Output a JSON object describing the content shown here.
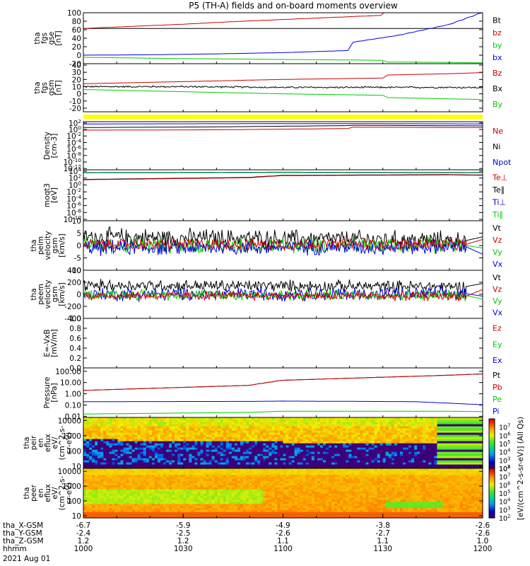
{
  "title": "P5 (TH-A) fields and on-board moments overview",
  "colors": {
    "black": "#000000",
    "red": "#cc0000",
    "green": "#00cc00",
    "blue": "#0000dd",
    "yellow": "#ffff00"
  },
  "chart_data": [
    {
      "type": "line",
      "id": "p1",
      "ylabel": [
        "tha",
        "fgs",
        "gse",
        "[nT]"
      ],
      "yticks": [
        "100",
        "80",
        "60",
        "40",
        "20",
        "0",
        "-20"
      ],
      "ylim": [
        -20,
        100
      ],
      "log": false,
      "legend": [
        {
          "name": "Bt",
          "color": "black"
        },
        {
          "name": "bz",
          "color": "red"
        },
        {
          "name": "by",
          "color": "green"
        },
        {
          "name": "bx",
          "color": "blue"
        }
      ],
      "series": [
        {
          "name": "Bt",
          "color": "black",
          "x": [
            1000,
            1200
          ],
          "y": [
            63,
            63
          ]
        },
        {
          "name": "bz",
          "color": "red",
          "x": [
            1000,
            1015,
            1030,
            1045,
            1060,
            1075,
            1090,
            1105,
            1120,
            1135,
            1150
          ],
          "y": [
            63,
            68,
            73,
            79,
            84,
            89,
            94,
            98,
            101,
            103,
            104
          ]
        },
        {
          "name": "bx",
          "color": "blue",
          "x": [
            1000,
            1020,
            1040,
            1060,
            1080,
            1100,
            1120,
            1135,
            1150,
            1160
          ],
          "y": [
            0,
            1,
            3,
            6,
            11,
            18,
            29,
            47,
            72,
            100
          ]
        },
        {
          "name": "by",
          "color": "green",
          "x": [
            1000,
            1030,
            1060,
            1090,
            1110,
            1130,
            1150,
            1170,
            1185,
            1200
          ],
          "y": [
            -5,
            -8,
            -10,
            -12,
            -14,
            -16,
            -17,
            -19,
            -17,
            -11
          ]
        }
      ]
    },
    {
      "type": "line",
      "id": "p2",
      "ylabel": [
        "tha",
        "fgs",
        "gsm",
        "[nT]"
      ],
      "yticks": [
        "40",
        "30",
        "20",
        "10",
        "0",
        "-10",
        "-20"
      ],
      "ylim": [
        -25,
        42
      ],
      "log": false,
      "legend": [
        {
          "name": "Bz",
          "color": "red"
        },
        {
          "name": "Bx",
          "color": "black"
        },
        {
          "name": "By",
          "color": "green"
        }
      ],
      "series": [
        {
          "name": "Bz",
          "color": "red",
          "x": [
            1000,
            1030,
            1060,
            1090,
            1120,
            1150,
            1170,
            1185,
            1200
          ],
          "y": [
            14,
            17,
            20,
            22,
            25,
            28,
            31,
            33,
            30
          ]
        },
        {
          "name": "Bx",
          "color": "black",
          "x": [
            1000,
            1030,
            1060,
            1090,
            1120,
            1150,
            1180,
            1200
          ],
          "y": [
            10,
            10,
            9,
            9,
            9,
            9,
            8,
            8
          ],
          "noise": 1
        },
        {
          "name": "By",
          "color": "green",
          "x": [
            1000,
            1030,
            1060,
            1090,
            1120,
            1150,
            1180,
            1200
          ],
          "y": [
            6,
            3,
            0,
            -2,
            -4,
            -7,
            -10,
            -12
          ]
        }
      ]
    },
    {
      "type": "line",
      "id": "p3",
      "ylabel": [
        "Density",
        "[cm-3]"
      ],
      "yticks": [
        "10^2",
        "10^0",
        "10^-2",
        "10^-4",
        "10^-6",
        "10^-8",
        "10^-10",
        "10^-12"
      ],
      "ylim": [
        -12.4,
        2.4
      ],
      "log": true,
      "legend": [
        {
          "name": "Ne",
          "color": "red"
        },
        {
          "name": "Ni",
          "color": "black"
        },
        {
          "name": "Npot",
          "color": "blue"
        }
      ],
      "series": [
        {
          "name": "Npot",
          "color": "blue",
          "x": [
            1000,
            1060,
            1120,
            1170,
            1200
          ],
          "y": [
            1.7,
            1.8,
            1.8,
            1.7,
            1.5
          ]
        },
        {
          "name": "Ni",
          "color": "black",
          "x": [
            1000,
            1040,
            1080,
            1120,
            1160,
            1200
          ],
          "y": [
            0.6,
            0.8,
            1.2,
            1.3,
            1.1,
            0.9
          ]
        },
        {
          "name": "Ne",
          "color": "red",
          "x": [
            1000,
            1040,
            1080,
            1120,
            1160,
            1200
          ],
          "y": [
            -0.2,
            -0.1,
            0.3,
            0.7,
            0.6,
            0.3
          ]
        }
      ]
    },
    {
      "type": "line",
      "id": "p4",
      "ylabel": [
        "moqt3",
        "[eV]"
      ],
      "yticks": [
        "10^4",
        "10^2",
        "10^0",
        "10^-2",
        "10^-4",
        "10^-6",
        "10^-8",
        "10^-10"
      ],
      "ylim": [
        -10.4,
        4.4
      ],
      "log": true,
      "legend": [
        {
          "name": "Te⊥",
          "color": "red"
        },
        {
          "name": "Te∥",
          "color": "black"
        },
        {
          "name": "Ti⊥",
          "color": "blue"
        },
        {
          "name": "Ti∥",
          "color": "green"
        }
      ],
      "series": [
        {
          "name": "Ti⊥",
          "color": "blue",
          "x": [
            1000,
            1100,
            1200
          ],
          "y": [
            3.6,
            3.7,
            3.6
          ]
        },
        {
          "name": "Ti∥",
          "color": "green",
          "x": [
            1000,
            1100,
            1200
          ],
          "y": [
            3.5,
            3.6,
            3.5
          ]
        },
        {
          "name": "Te∥",
          "color": "black",
          "x": [
            1000,
            1050,
            1100,
            1150,
            1200
          ],
          "y": [
            1.6,
            2.2,
            2.8,
            3.0,
            2.9
          ]
        },
        {
          "name": "Te⊥",
          "color": "red",
          "x": [
            1000,
            1050,
            1100,
            1150,
            1200
          ],
          "y": [
            1.5,
            2.1,
            2.7,
            2.9,
            2.8
          ]
        }
      ]
    },
    {
      "type": "line",
      "id": "p5",
      "ylabel": [
        "tha",
        "peim",
        "velocity",
        "gsm",
        "[km/s]"
      ],
      "yticks": [
        "10",
        "5",
        "0",
        "-5",
        "-10"
      ],
      "ylim": [
        -10,
        10
      ],
      "log": false,
      "legend": [
        {
          "name": "Vt",
          "color": "black"
        },
        {
          "name": "Vz",
          "color": "red"
        },
        {
          "name": "Vy",
          "color": "green"
        },
        {
          "name": "Vx",
          "color": "blue"
        }
      ],
      "noisy_until": 1155,
      "series": [
        {
          "name": "Vt",
          "color": "black",
          "x": [
            1000,
            1155,
            1200
          ],
          "y": [
            3.5,
            2.0,
            3.5
          ],
          "noise": 3
        },
        {
          "name": "Vy",
          "color": "green",
          "x": [
            1000,
            1155,
            1200
          ],
          "y": [
            0,
            0,
            -1
          ],
          "noise": 2.5
        },
        {
          "name": "Vx",
          "color": "blue",
          "x": [
            1000,
            1155,
            1200
          ],
          "y": [
            -1,
            -0.5,
            -3.5
          ],
          "noise": 2.5
        },
        {
          "name": "Vz",
          "color": "red",
          "x": [
            1000,
            1155,
            1200
          ],
          "y": [
            0.5,
            0.5,
            2.5
          ],
          "noise": 2
        }
      ]
    },
    {
      "type": "line",
      "id": "p6",
      "ylabel": [
        "tha",
        "peem",
        "velocity",
        "gsm",
        "[km/s]"
      ],
      "yticks": [
        "400",
        "200",
        "0",
        "-200",
        "-400"
      ],
      "ylim": [
        -400,
        400
      ],
      "log": false,
      "legend": [
        {
          "name": "Vt",
          "color": "black"
        },
        {
          "name": "Vz",
          "color": "red"
        },
        {
          "name": "Vy",
          "color": "green"
        },
        {
          "name": "Vx",
          "color": "blue"
        }
      ],
      "noisy_until": 1155,
      "series": [
        {
          "name": "Vt",
          "color": "black",
          "x": [
            1000,
            1155,
            1200
          ],
          "y": [
            150,
            130,
            180
          ],
          "noise": 80
        },
        {
          "name": "Vx",
          "color": "blue",
          "x": [
            1000,
            1155,
            1200
          ],
          "y": [
            0,
            10,
            -30
          ],
          "noise": 90
        },
        {
          "name": "Vy",
          "color": "green",
          "x": [
            1000,
            1155,
            1200
          ],
          "y": [
            0,
            -20,
            -80
          ],
          "noise": 70
        },
        {
          "name": "Vz",
          "color": "red",
          "x": [
            1000,
            1155,
            1200
          ],
          "y": [
            -20,
            -30,
            80
          ],
          "noise": 60
        }
      ]
    },
    {
      "type": "line",
      "id": "p7",
      "ylabel": [
        "E=-VxB",
        "[mV/m]"
      ],
      "yticks": [
        "1.0",
        "0.8",
        "0.6",
        "0.4",
        "0.2",
        "0.0"
      ],
      "ylim": [
        0,
        1
      ],
      "log": false,
      "legend": [
        {
          "name": "Ez",
          "color": "red"
        },
        {
          "name": "Ey",
          "color": "green"
        },
        {
          "name": "Ex",
          "color": "blue"
        }
      ],
      "series": []
    },
    {
      "type": "line",
      "id": "p8",
      "ylabel": [
        "Pressure",
        "[nPa]"
      ],
      "yticks": [
        "100.00",
        "10.00",
        "1.00",
        "0.10",
        "0.01"
      ],
      "ylim": [
        -2.1,
        2.3
      ],
      "log": true,
      "legend": [
        {
          "name": "Pt",
          "color": "black"
        },
        {
          "name": "Pb",
          "color": "red"
        },
        {
          "name": "Pe",
          "color": "green"
        },
        {
          "name": "Pi",
          "color": "blue"
        }
      ],
      "series": [
        {
          "name": "Pt",
          "color": "black",
          "x": [
            1000,
            1050,
            1100,
            1150,
            1180,
            1200
          ],
          "y": [
            0.3,
            0.75,
            1.2,
            1.65,
            2.0,
            2.2
          ]
        },
        {
          "name": "Pb",
          "color": "red",
          "x": [
            1000,
            1050,
            1100,
            1150,
            1180,
            1200
          ],
          "y": [
            0.3,
            0.75,
            1.2,
            1.65,
            2.0,
            2.2
          ]
        },
        {
          "name": "Pi",
          "color": "blue",
          "x": [
            1000,
            1050,
            1100,
            1140,
            1170,
            1200
          ],
          "y": [
            -0.7,
            -0.68,
            -0.65,
            -0.7,
            -1.1,
            -1.6
          ]
        },
        {
          "name": "Pe",
          "color": "green",
          "x": [
            1000,
            1050,
            1100,
            1150,
            1180,
            1200
          ],
          "y": [
            -1.8,
            -1.65,
            -1.55,
            -1.55,
            -1.65,
            -1.8
          ]
        }
      ]
    },
    {
      "type": "heatmap",
      "id": "s1",
      "ylabel": [
        "tha",
        "peir",
        "en",
        "eflux",
        "eV/",
        "(cm^2-s-",
        "sr-eV)"
      ],
      "yticks": [
        "10000",
        "1000",
        "100",
        "10"
      ],
      "ylim": [
        0.85,
        4.2
      ],
      "log": true,
      "variant": "peir"
    },
    {
      "type": "heatmap",
      "id": "s2",
      "ylabel": [
        "tha",
        "peer",
        "en",
        "eflux",
        "eV/",
        "(cm^2-s-",
        "sr-eV)"
      ],
      "yticks": [
        "10000",
        "1000",
        "100",
        "10"
      ],
      "ylim": [
        0.85,
        4.2
      ],
      "log": true,
      "variant": "peer"
    }
  ],
  "colorbar": {
    "ticks": [
      "10^8",
      "10^7",
      "10^6",
      "10^5",
      "10^4",
      "10^3",
      "10^2"
    ],
    "label": "[eV/(cm^2-s-sr-eV)] (All Qs)",
    "range": [
      2,
      8
    ]
  },
  "xaxis": {
    "xlim": [
      1000,
      1200
    ],
    "ticks": [
      1000,
      1030,
      1100,
      1130,
      1200
    ],
    "rows": [
      {
        "label": "tha_X-GSM",
        "values": [
          "-6.7",
          "-5.9",
          "-4.9",
          "-3.8",
          "-2.6"
        ]
      },
      {
        "label": "tha_Y-GSM",
        "values": [
          "-2.4",
          "-2.5",
          "-2.6",
          "-2.7",
          "-2.6"
        ]
      },
      {
        "label": "tha_Z-GSM",
        "values": [
          "1.2",
          "1.2",
          "1.1",
          "1.1",
          "1.0"
        ]
      },
      {
        "label": "hhmm",
        "values": [
          "1000",
          "1030",
          "1100",
          "1130",
          "1200"
        ]
      }
    ],
    "date": "2021 Aug 01"
  }
}
